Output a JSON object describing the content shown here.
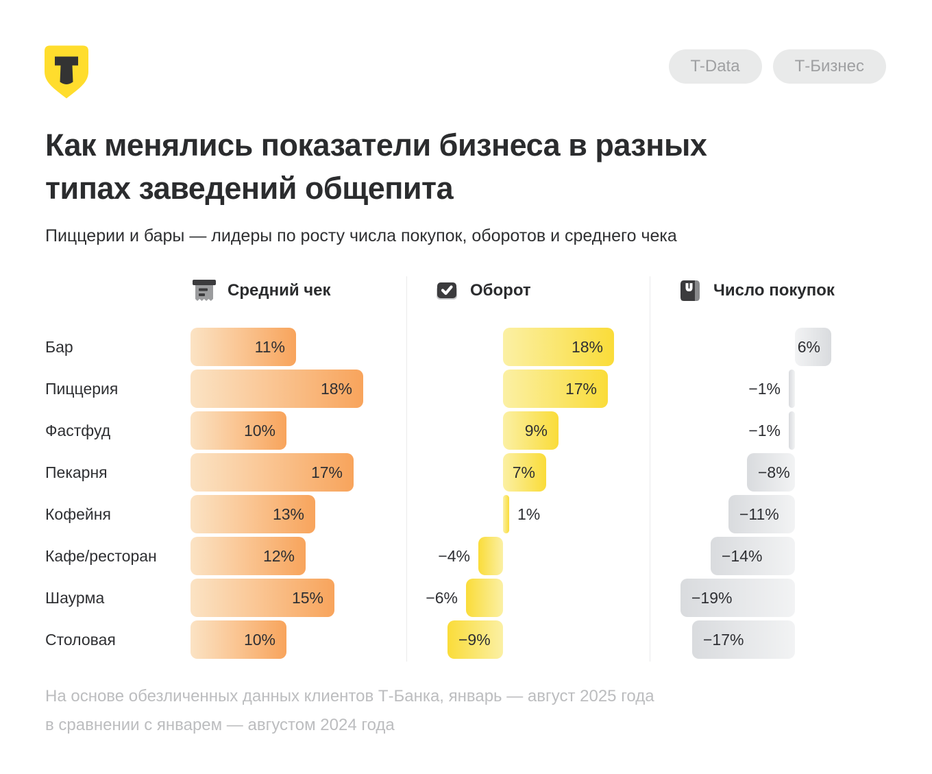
{
  "logo": {
    "letter": "Т",
    "color": "#ffdd2d",
    "letter_color": "#333333"
  },
  "badges": [
    {
      "label": "T-Data"
    },
    {
      "label": "Т-Бизнес"
    }
  ],
  "title_line1": "Как менялись показатели бизнеса в разных",
  "title_line2": "типах заведений общепита",
  "subtitle": "Пиццерии и бары — лидеры по росту числа покупок, оборотов и среднего чека",
  "footnote_line1": "На основе обезличенных данных клиентов Т-Банка, январь — август 2025 года",
  "footnote_line2": "в сравнении с январем — августом 2024 года",
  "chart_data": {
    "type": "bar",
    "orientation": "horizontal",
    "value_suffix": "%",
    "grid": false,
    "legend": "none",
    "categories": [
      "Бар",
      "Пиццерия",
      "Фастфуд",
      "Пекарня",
      "Кофейня",
      "Кафе/ресторан",
      "Шаурма",
      "Столовая"
    ],
    "series": [
      {
        "name": "Средний чек",
        "icon": "receipt-icon",
        "values": [
          11,
          18,
          10,
          17,
          13,
          12,
          15,
          10
        ],
        "bar_gradient": [
          "#fbe3c4",
          "#f8a45c"
        ]
      },
      {
        "name": "Оборот",
        "icon": "card-check-icon",
        "values": [
          18,
          17,
          9,
          7,
          1,
          -4,
          -6,
          -9
        ],
        "bar_gradient": [
          "#fbf0a4",
          "#fadc39"
        ]
      },
      {
        "name": "Число покупок",
        "icon": "shopping-bag-icon",
        "values": [
          6,
          -1,
          -1,
          -8,
          -11,
          -14,
          -19,
          -17
        ],
        "bar_gradient": [
          "#f2f3f4",
          "#d9dbde"
        ]
      }
    ]
  }
}
